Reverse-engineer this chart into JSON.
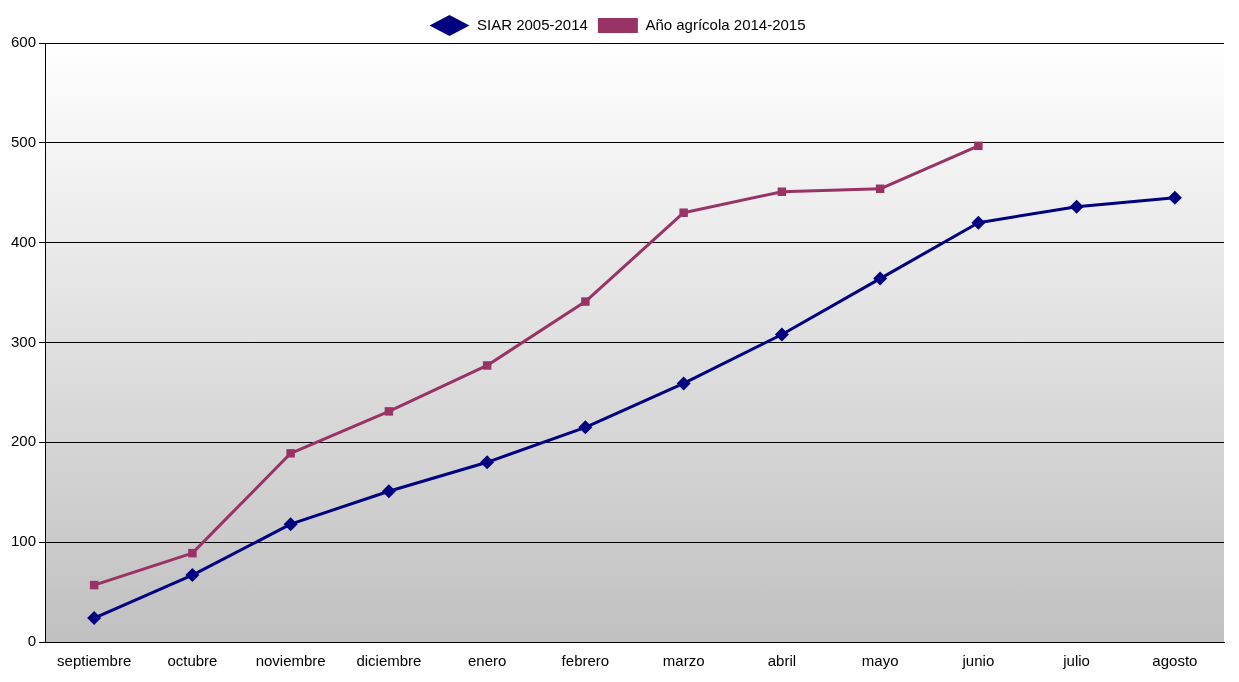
{
  "chart_data": {
    "type": "line",
    "categories": [
      "septiembre",
      "octubre",
      "noviembre",
      "diciembre",
      "enero",
      "febrero",
      "marzo",
      "abril",
      "mayo",
      "junio",
      "julio",
      "agosto"
    ],
    "series": [
      {
        "name": "SIAR 2005-2014",
        "color": "#000080",
        "marker": "diamond",
        "values": [
          24,
          67,
          118,
          151,
          180,
          215,
          259,
          308,
          364,
          420,
          436,
          445
        ]
      },
      {
        "name": "Año agrícola 2014-2015",
        "color": "#993366",
        "marker": "square",
        "values": [
          57,
          89,
          189,
          231,
          277,
          341,
          430,
          451,
          454,
          497,
          null,
          null
        ]
      }
    ],
    "ylim": [
      0,
      600
    ],
    "yticks": [
      0,
      100,
      200,
      300,
      400,
      500,
      600
    ],
    "grid": "y",
    "legend": "top"
  }
}
